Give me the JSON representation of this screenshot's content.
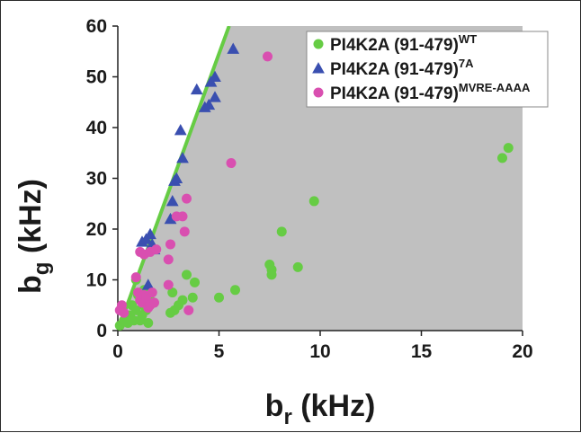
{
  "chart_data": {
    "type": "scatter",
    "xlabel": {
      "base": "b",
      "sub": "r",
      "unit": " (kHz)"
    },
    "ylabel": {
      "base": "b",
      "sub": "g",
      "unit": " (kHz)"
    },
    "xlim": [
      0,
      20
    ],
    "ylim": [
      0,
      60
    ],
    "xticks": [
      "0",
      "5",
      "10",
      "15",
      "20"
    ],
    "yticks": [
      "0",
      "10",
      "20",
      "30",
      "40",
      "50",
      "60"
    ],
    "grid": false,
    "legend_position": "top-right",
    "shaded_region": {
      "description": "allowed region",
      "color": "#c0c0c0",
      "boundary_slope": 10.9
    },
    "boundary_line": {
      "color": "#66cc44",
      "x": [
        0,
        5.5
      ],
      "y": [
        0,
        60
      ]
    },
    "series": [
      {
        "name": "PI4K2A (91-479)",
        "sup": "WT",
        "marker": "circle",
        "color": "#66cc44",
        "points": [
          [
            0.1,
            1
          ],
          [
            0.3,
            2
          ],
          [
            0.5,
            1.5
          ],
          [
            0.6,
            3
          ],
          [
            0.7,
            5
          ],
          [
            0.8,
            2
          ],
          [
            0.9,
            4
          ],
          [
            1.0,
            7
          ],
          [
            1.1,
            2
          ],
          [
            1.2,
            3
          ],
          [
            1.3,
            5
          ],
          [
            1.4,
            4
          ],
          [
            1.5,
            1.5
          ],
          [
            1.6,
            6
          ],
          [
            1.3,
            8
          ],
          [
            0.9,
            10
          ],
          [
            2.6,
            3.5
          ],
          [
            2.8,
            4
          ],
          [
            3.0,
            5
          ],
          [
            3.2,
            6
          ],
          [
            2.7,
            7.5
          ],
          [
            3.4,
            11
          ],
          [
            3.8,
            9.5
          ],
          [
            3.7,
            6.5
          ],
          [
            5.0,
            6.5
          ],
          [
            5.8,
            8
          ],
          [
            7.5,
            13
          ],
          [
            7.6,
            12
          ],
          [
            7.6,
            11
          ],
          [
            8.9,
            12.5
          ],
          [
            8.1,
            19.5
          ],
          [
            9.7,
            25.5
          ],
          [
            19.0,
            34
          ],
          [
            19.3,
            36
          ]
        ]
      },
      {
        "name": "PI4K2A (91-479)",
        "sup": "7A",
        "marker": "triangle",
        "color": "#3a4fb0",
        "points": [
          [
            1.2,
            17.5
          ],
          [
            1.4,
            18
          ],
          [
            1.6,
            19
          ],
          [
            1.7,
            17
          ],
          [
            1.5,
            9
          ],
          [
            1.8,
            16
          ],
          [
            2.6,
            22
          ],
          [
            2.7,
            25.5
          ],
          [
            2.8,
            29.5
          ],
          [
            2.9,
            30
          ],
          [
            3.2,
            34
          ],
          [
            3.1,
            39.5
          ],
          [
            3.9,
            47.5
          ],
          [
            4.3,
            44
          ],
          [
            4.5,
            44.5
          ],
          [
            4.6,
            49
          ],
          [
            4.8,
            50
          ],
          [
            4.8,
            46
          ],
          [
            5.7,
            55.5
          ]
        ]
      },
      {
        "name": "PI4K2A (91-479)",
        "sup": "MVRE-AAAA",
        "marker": "circle",
        "color": "#d94fb0",
        "points": [
          [
            0.1,
            4
          ],
          [
            0.2,
            5
          ],
          [
            0.3,
            3.5
          ],
          [
            0.9,
            10.5
          ],
          [
            1.0,
            7.5
          ],
          [
            1.1,
            6
          ],
          [
            1.2,
            5.5
          ],
          [
            1.3,
            7
          ],
          [
            1.4,
            6.5
          ],
          [
            1.5,
            4.5
          ],
          [
            1.6,
            5
          ],
          [
            1.7,
            7.5
          ],
          [
            1.8,
            5.5
          ],
          [
            1.1,
            15.5
          ],
          [
            1.3,
            15
          ],
          [
            1.6,
            15.5
          ],
          [
            1.9,
            16
          ],
          [
            2.5,
            9
          ],
          [
            2.5,
            14
          ],
          [
            2.6,
            17
          ],
          [
            2.9,
            22.5
          ],
          [
            3.2,
            22.5
          ],
          [
            3.3,
            19.5
          ],
          [
            3.4,
            26
          ],
          [
            3.5,
            4
          ],
          [
            5.6,
            33
          ],
          [
            7.4,
            54
          ]
        ]
      }
    ]
  }
}
